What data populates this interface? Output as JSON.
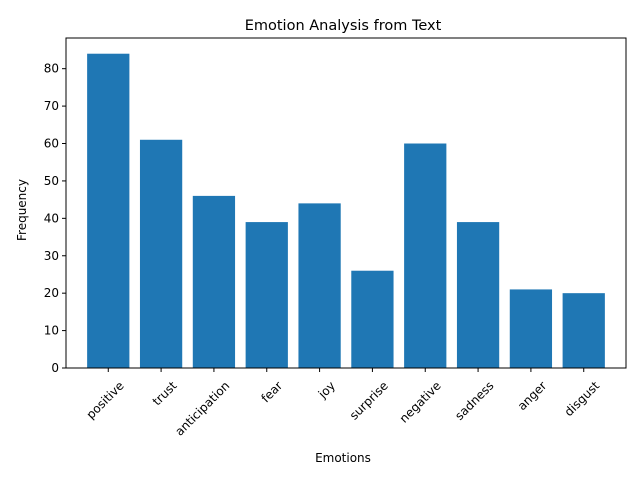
{
  "chart_data": {
    "type": "bar",
    "title": "Emotion Analysis from Text",
    "xlabel": "Emotions",
    "ylabel": "Frequency",
    "categories": [
      "positive",
      "trust",
      "anticipation",
      "fear",
      "joy",
      "surprise",
      "negative",
      "sadness",
      "anger",
      "disgust"
    ],
    "values": [
      84,
      61,
      46,
      39,
      44,
      26,
      60,
      39,
      21,
      20
    ],
    "ylim": [
      0,
      88.2
    ],
    "yticks": [
      0,
      10,
      20,
      30,
      40,
      50,
      60,
      70,
      80
    ],
    "grid": false,
    "legend": "none",
    "bar_color": "#1f77b4",
    "axis_color": "#000000"
  }
}
